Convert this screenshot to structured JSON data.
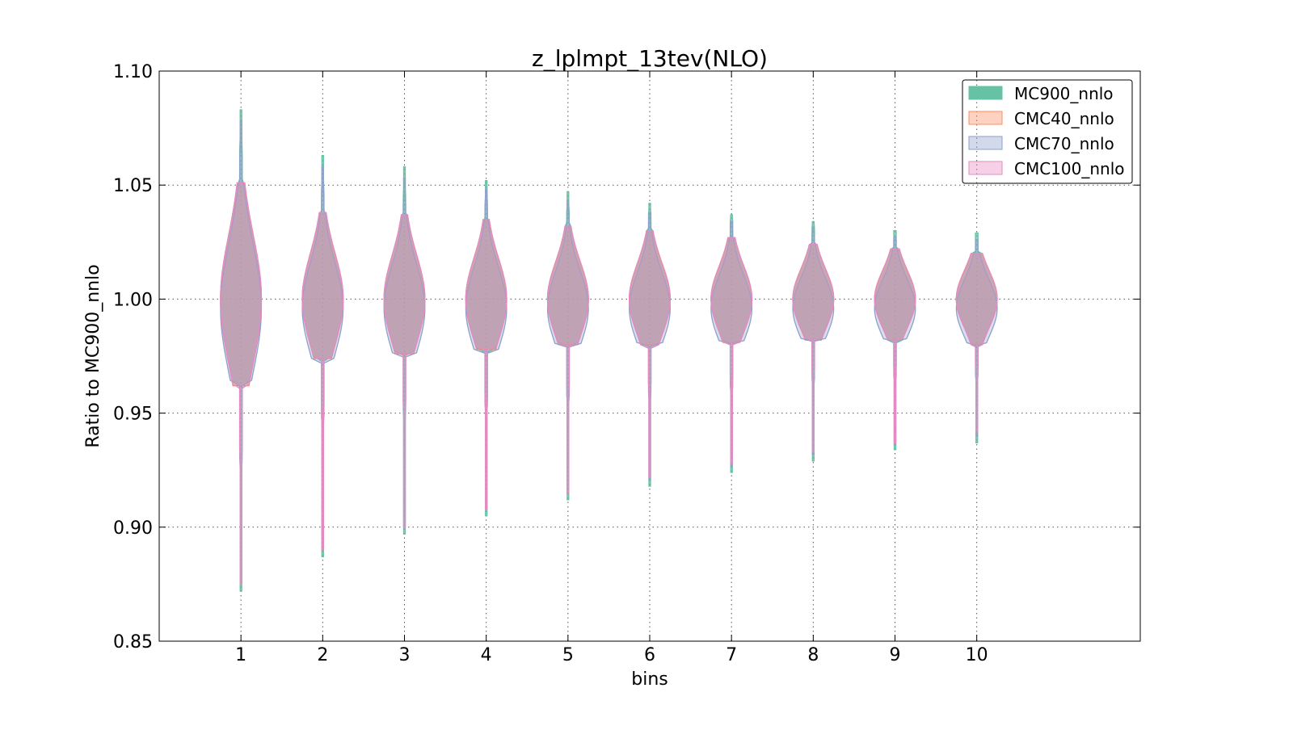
{
  "chart_data": {
    "type": "violin",
    "title": "z_lplmpt_13tev(NLO)",
    "xlabel": "bins",
    "ylabel": "Ratio to MC900_nnlo",
    "xlim": [
      0,
      12
    ],
    "ylim": [
      0.85,
      1.1
    ],
    "grid": true,
    "legend_placement": "top-right",
    "categories": [
      "1",
      "2",
      "3",
      "4",
      "5",
      "6",
      "7",
      "8",
      "9",
      "10"
    ],
    "yticks": [
      "0.85",
      "0.90",
      "0.95",
      "1.00",
      "1.05",
      "1.10"
    ],
    "series": [
      {
        "name": "MC900_nnlo",
        "color": "#66c2a5",
        "min": [
          0.872,
          0.887,
          0.897,
          0.905,
          0.912,
          0.918,
          0.924,
          0.929,
          0.934,
          0.937
        ],
        "max": [
          1.083,
          1.063,
          1.058,
          1.052,
          1.047,
          1.042,
          1.037,
          1.034,
          1.03,
          1.029
        ]
      },
      {
        "name": "CMC40_nnlo",
        "color": "#fc8d62",
        "min": [
          0.962,
          0.974,
          0.976,
          0.978,
          0.98,
          0.98,
          0.981,
          0.982,
          0.982,
          0.98
        ],
        "max": [
          1.051,
          1.038,
          1.037,
          1.035,
          1.032,
          1.03,
          1.027,
          1.024,
          1.022,
          1.02
        ]
      },
      {
        "name": "CMC70_nnlo",
        "color": "#8da0cb",
        "min": [
          0.876,
          0.89,
          0.9,
          0.908,
          0.915,
          0.921,
          0.927,
          0.932,
          0.936,
          0.94
        ],
        "max": [
          1.078,
          1.058,
          1.053,
          1.048,
          1.043,
          1.038,
          1.034,
          1.031,
          1.027,
          1.026
        ]
      },
      {
        "name": "CMC100_nnlo",
        "color": "#e78ac3",
        "min": [
          0.875,
          0.89,
          0.9,
          0.908,
          0.915,
          0.922,
          0.928,
          0.933,
          0.937,
          0.942
        ],
        "max": [
          1.051,
          1.038,
          1.037,
          1.035,
          1.032,
          1.03,
          1.027,
          1.024,
          1.022,
          1.02
        ]
      }
    ]
  }
}
